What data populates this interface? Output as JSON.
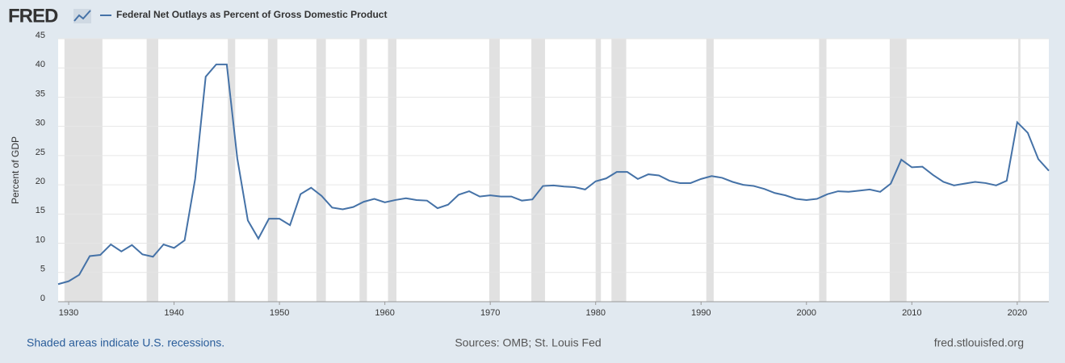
{
  "chart_data": {
    "type": "line",
    "logo": "FRED",
    "title": "Federal Net Outlays as Percent of Gross Domestic Product",
    "y_label": "Percent of GDP",
    "footer_left": "Shaded areas indicate U.S. recessions.",
    "footer_center": "Sources: OMB; St. Louis Fed",
    "footer_right": "fred.stlouisfed.org",
    "x": [
      1929,
      1930,
      1931,
      1932,
      1933,
      1934,
      1935,
      1936,
      1937,
      1938,
      1939,
      1940,
      1941,
      1942,
      1943,
      1944,
      1945,
      1946,
      1947,
      1948,
      1949,
      1950,
      1951,
      1952,
      1953,
      1954,
      1955,
      1956,
      1957,
      1958,
      1959,
      1960,
      1961,
      1962,
      1963,
      1964,
      1965,
      1966,
      1967,
      1968,
      1969,
      1970,
      1971,
      1972,
      1973,
      1974,
      1975,
      1976,
      1977,
      1978,
      1979,
      1980,
      1981,
      1982,
      1983,
      1984,
      1985,
      1986,
      1987,
      1988,
      1989,
      1990,
      1991,
      1992,
      1993,
      1994,
      1995,
      1996,
      1997,
      1998,
      1999,
      2000,
      2001,
      2002,
      2003,
      2004,
      2005,
      2006,
      2007,
      2008,
      2009,
      2010,
      2011,
      2012,
      2013,
      2014,
      2015,
      2016,
      2017,
      2018,
      2019,
      2020,
      2021,
      2022,
      2023
    ],
    "series": [
      {
        "name": "Federal Net Outlays as Percent of Gross Domestic Product",
        "color": "#4572a7",
        "values": [
          3.0,
          3.5,
          4.6,
          7.8,
          8.0,
          9.8,
          8.6,
          9.7,
          8.1,
          7.7,
          9.8,
          9.2,
          10.5,
          21.0,
          38.5,
          40.6,
          40.6,
          24.5,
          13.9,
          10.8,
          14.2,
          14.2,
          13.1,
          18.4,
          19.5,
          18.1,
          16.1,
          15.8,
          16.2,
          17.1,
          17.6,
          17.0,
          17.4,
          17.7,
          17.4,
          17.3,
          16.0,
          16.6,
          18.3,
          18.9,
          18.0,
          18.2,
          18.0,
          18.0,
          17.3,
          17.5,
          19.8,
          19.9,
          19.7,
          19.6,
          19.2,
          20.6,
          21.1,
          22.2,
          22.2,
          21.0,
          21.8,
          21.6,
          20.7,
          20.3,
          20.3,
          21.0,
          21.5,
          21.2,
          20.5,
          20.0,
          19.8,
          19.3,
          18.6,
          18.2,
          17.6,
          17.4,
          17.6,
          18.4,
          18.9,
          18.8,
          19.0,
          19.2,
          18.8,
          20.2,
          24.3,
          23.0,
          23.1,
          21.7,
          20.5,
          19.9,
          20.2,
          20.5,
          20.3,
          19.9,
          20.7,
          30.7,
          28.9,
          24.4,
          22.4
        ]
      }
    ],
    "recessions": [
      [
        1929.6,
        1933.2
      ],
      [
        1937.4,
        1938.5
      ],
      [
        1945.1,
        1945.8
      ],
      [
        1948.9,
        1949.8
      ],
      [
        1953.5,
        1954.4
      ],
      [
        1957.6,
        1958.3
      ],
      [
        1960.3,
        1961.1
      ],
      [
        1969.9,
        1970.9
      ],
      [
        1973.9,
        1975.2
      ],
      [
        1980.0,
        1980.5
      ],
      [
        1981.5,
        1982.9
      ],
      [
        1990.5,
        1991.2
      ],
      [
        2001.2,
        2001.9
      ],
      [
        2007.9,
        2009.5
      ],
      [
        2020.1,
        2020.3
      ]
    ],
    "recession_color": "#e1e1e1",
    "xlim": [
      1929,
      2023
    ],
    "xticks": [
      1930,
      1940,
      1950,
      1960,
      1970,
      1980,
      1990,
      2000,
      2010,
      2020
    ],
    "ylim": [
      0,
      45
    ],
    "yticks": [
      0,
      5,
      10,
      15,
      20,
      25,
      30,
      35,
      40,
      45
    ],
    "grid": true
  }
}
